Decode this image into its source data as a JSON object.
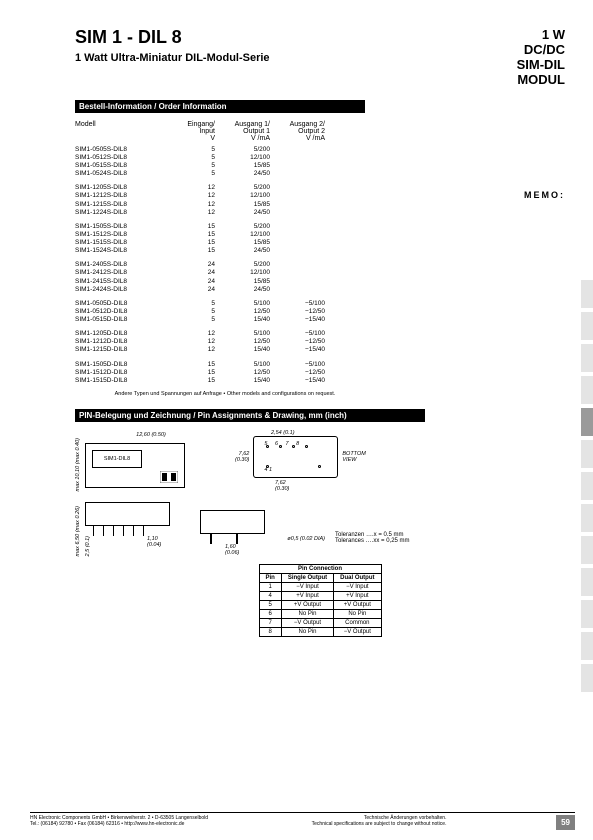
{
  "header": {
    "main_title": "SIM 1 - DIL 8",
    "sub_title": "1 Watt Ultra-Miniatur DIL-Modul-Serie",
    "right_line1": "1 W",
    "right_line2": "DC/DC",
    "right_line3": "SIM-DIL",
    "right_line4": "MODUL"
  },
  "memo": "MEMO:",
  "section1_title": "Bestell-Information / Order Information",
  "order_headers": {
    "model": "Modell",
    "input_l1": "Eingang/",
    "input_l2": "Input",
    "input_l3": "V",
    "out1_l1": "Ausgang 1/",
    "out1_l2": "Output 1",
    "out1_l3": "V /mA",
    "out2_l1": "Ausgang 2/",
    "out2_l2": "Output 2",
    "out2_l3": "V /mA"
  },
  "order_groups": [
    [
      {
        "m": "SIM1-0505S-DIL8",
        "in": "5",
        "o1": "5/200",
        "o2": ""
      },
      {
        "m": "SIM1-0512S-DIL8",
        "in": "5",
        "o1": "12/100",
        "o2": ""
      },
      {
        "m": "SIM1-0515S-DIL8",
        "in": "5",
        "o1": "15/85",
        "o2": ""
      },
      {
        "m": "SIM1-0524S-DIL8",
        "in": "5",
        "o1": "24/50",
        "o2": ""
      }
    ],
    [
      {
        "m": "SIM1-1205S-DIL8",
        "in": "12",
        "o1": "5/200",
        "o2": ""
      },
      {
        "m": "SIM1-1212S-DIL8",
        "in": "12",
        "o1": "12/100",
        "o2": ""
      },
      {
        "m": "SIM1-1215S-DIL8",
        "in": "12",
        "o1": "15/85",
        "o2": ""
      },
      {
        "m": "SIM1-1224S-DIL8",
        "in": "12",
        "o1": "24/50",
        "o2": ""
      }
    ],
    [
      {
        "m": "SIM1-1505S-DIL8",
        "in": "15",
        "o1": "5/200",
        "o2": ""
      },
      {
        "m": "SIM1-1512S-DIL8",
        "in": "15",
        "o1": "12/100",
        "o2": ""
      },
      {
        "m": "SIM1-1515S-DIL8",
        "in": "15",
        "o1": "15/85",
        "o2": ""
      },
      {
        "m": "SIM1-1524S-DIL8",
        "in": "15",
        "o1": "24/50",
        "o2": ""
      }
    ],
    [
      {
        "m": "SIM1-2405S-DIL8",
        "in": "24",
        "o1": "5/200",
        "o2": ""
      },
      {
        "m": "SIM1-2412S-DIL8",
        "in": "24",
        "o1": "12/100",
        "o2": ""
      },
      {
        "m": "SIM1-2415S-DIL8",
        "in": "24",
        "o1": "15/85",
        "o2": ""
      },
      {
        "m": "SIM1-2424S-DIL8",
        "in": "24",
        "o1": "24/50",
        "o2": ""
      }
    ],
    [
      {
        "m": "SIM1-0505D-DIL8",
        "in": "5",
        "o1": "5/100",
        "o2": "−5/100"
      },
      {
        "m": "SIM1-0512D-DIL8",
        "in": "5",
        "o1": "12/50",
        "o2": "−12/50"
      },
      {
        "m": "SIM1-0515D-DIL8",
        "in": "5",
        "o1": "15/40",
        "o2": "−15/40"
      }
    ],
    [
      {
        "m": "SIM1-1205D-DIL8",
        "in": "12",
        "o1": "5/100",
        "o2": "−5/100"
      },
      {
        "m": "SIM1-1212D-DIL8",
        "in": "12",
        "o1": "12/50",
        "o2": "−12/50"
      },
      {
        "m": "SIM1-1215D-DIL8",
        "in": "12",
        "o1": "15/40",
        "o2": "−15/40"
      }
    ],
    [
      {
        "m": "SIM1-1505D-DIL8",
        "in": "15",
        "o1": "5/100",
        "o2": "−5/100"
      },
      {
        "m": "SIM1-1512D-DIL8",
        "in": "15",
        "o1": "12/50",
        "o2": "−12/50"
      },
      {
        "m": "SIM1-1515D-DIL8",
        "in": "15",
        "o1": "15/40",
        "o2": "−15/40"
      }
    ]
  ],
  "order_note": "Andere Typen und Spannungen auf Anfrage • Other models and configurations on request.",
  "section2_title": "PIN-Belegung  und Zeichnung / Pin Assignments & Drawing,  mm (inch)",
  "drawing": {
    "top_w": "12,60 (0.50)",
    "top_h_l1": "max 10,10",
    "top_h_l2": "(max 0.40)",
    "chip_label": "SIM1-DIL8",
    "bottom_w": "2,54 (0.1)",
    "bottom_h1": "7,62",
    "bottom_h1i": "(0.30)",
    "bottom_h2": "7,62",
    "bottom_h2i": "(0.30)",
    "bottom_label_l1": "BOTTOM",
    "bottom_label_l2": "VIEW",
    "pins_top": "5    6    7    8",
    "pins_bot": "4              1",
    "side_h_l1": "max 6,50",
    "side_h_l2": "(max 0.26)",
    "side_pin_l1": "2,5 (0.1)",
    "side_w1": "1,10",
    "side_w1i": "(0.04)",
    "side_w2": "1,60",
    "side_w2i": "(0.06)",
    "dia": "ø0,5 (0.02 DIA)",
    "tol1": "Toleranzen ….x   = 0.5 mm",
    "tol2": "Tolerances ….xx = 0,25 mm"
  },
  "pin_table": {
    "title": "Pin Connection",
    "headers": [
      "Pin",
      "Single Output",
      "Dual Output"
    ],
    "rows": [
      [
        "1",
        "−V Input",
        "−V Input"
      ],
      [
        "4",
        "+V Input",
        "+V Input"
      ],
      [
        "5",
        "+V Output",
        "+V Output"
      ],
      [
        "6",
        "No Pin",
        "No Pin"
      ],
      [
        "7",
        "−V Output",
        "Common"
      ],
      [
        "8",
        "No Pin",
        "−V Output"
      ]
    ]
  },
  "footer": {
    "left_l1": "HN Electronic Components GmbH • Birkenweiherstr. 2 • D-63505 Langenselbold",
    "left_l2": "Tel.: (06184) 92780 • Fax (06184) 62316 • http://www.hn-electronic.de",
    "right_l1": "Technische Änderungen vorbehalten.",
    "right_l2": "Technical specifications are subject to change without notice.",
    "page": "59"
  },
  "side_tabs": [
    0,
    0,
    0,
    0,
    1,
    0,
    0,
    0,
    0,
    0,
    0,
    0,
    0
  ]
}
